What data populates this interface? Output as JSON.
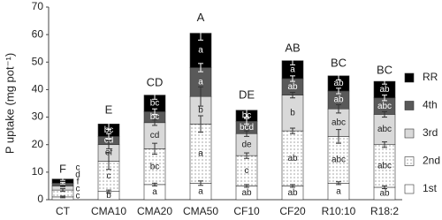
{
  "chart_data": {
    "type": "stacked_bar",
    "y_label": "P uptake (mg pot⁻¹)",
    "categories": [
      "CT",
      "CMA10",
      "CMA20",
      "CMA50",
      "CF10",
      "CF20",
      "R10:10",
      "R18:2"
    ],
    "total_letters": [
      "F",
      "E",
      "CD",
      "A",
      "DE",
      "AB",
      "BC",
      "BC"
    ],
    "series": [
      {
        "name": "1st",
        "color": "#ffffff",
        "values": [
          1,
          3,
          5.5,
          6,
          5,
          5,
          6,
          4.5
        ],
        "errors": [
          0.3,
          0.5,
          0.5,
          0.8,
          0.5,
          0.5,
          0.5,
          0.5
        ],
        "letters": [
          "c",
          "b",
          "a",
          "a",
          "ab",
          "ab",
          "a",
          "ab"
        ]
      },
      {
        "name": "2nd",
        "color": "#ffffff",
        "pattern": "dots",
        "values": [
          2.5,
          11,
          13,
          21.5,
          11,
          20,
          17,
          15.5
        ],
        "errors": [
          0.5,
          3,
          2,
          3,
          1,
          1,
          2.5,
          1
        ],
        "letters": [
          "c",
          "c",
          "bc",
          "a",
          "c",
          "ab",
          "abc",
          "abc"
        ]
      },
      {
        "name": "3rd",
        "color": "#d9d9d9",
        "values": [
          1.5,
          6,
          9.5,
          10,
          8,
          13,
          10,
          11
        ],
        "errors": [
          0.3,
          1.5,
          1,
          3.5,
          1,
          1,
          1.5,
          1
        ],
        "letters": [
          "f",
          "ef",
          "cd",
          "b",
          "de",
          "b",
          "abc",
          "abc"
        ]
      },
      {
        "name": "4th",
        "color": "#595959",
        "values": [
          1,
          3,
          4,
          10.5,
          4.5,
          6,
          6.5,
          6
        ],
        "errors": [
          0.3,
          1,
          1,
          1.5,
          1,
          1,
          1,
          1
        ],
        "letters": [
          "d",
          "cd",
          "bc",
          "a",
          "bcd",
          "ab",
          "ab",
          "abc"
        ]
      },
      {
        "name": "RR",
        "color": "#000000",
        "values": [
          1.5,
          4.5,
          6,
          12.5,
          4,
          6.5,
          5.5,
          6
        ],
        "errors": [
          0.5,
          2,
          1.5,
          2.5,
          2.5,
          1.5,
          1.5,
          1
        ],
        "letters": [
          "c",
          "bc",
          "bc",
          "a",
          "bc",
          "a",
          "ab",
          "ab"
        ]
      }
    ],
    "ylim": [
      0,
      70
    ],
    "yticks": [
      0,
      10,
      20,
      30,
      40,
      50,
      60,
      70
    ],
    "grid": false
  }
}
